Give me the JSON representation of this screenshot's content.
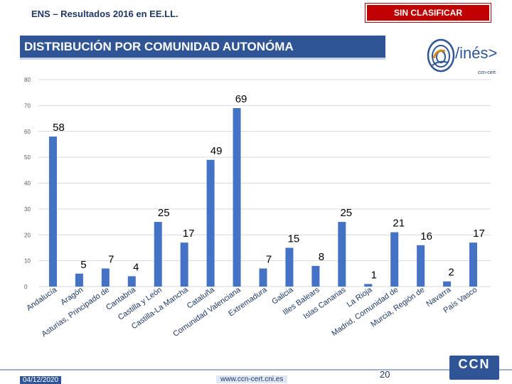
{
  "header": {
    "title": "ENS – Resultados 2016 en EE.LL.",
    "classification": "SIN CLASIFICAR"
  },
  "slide_title": "DISTRIBUCIÓN POR COMUNIDAD AUTONÓMA",
  "logo": {
    "text": "/inés>",
    "subtext": "ccn-cert"
  },
  "footer": {
    "date": "04/12/2020",
    "url": "www.ccn-cert.cni.es",
    "page": "20",
    "brand": "CCN"
  },
  "colors": {
    "bar": "#4472c4",
    "title_bg": "#2f5597",
    "classification_bg": "#c00000",
    "grid": "#d9d9d9"
  },
  "chart_data": {
    "type": "bar",
    "categories": [
      "Andalucía",
      "Aragón",
      "Asturias, Principado de",
      "Cantabria",
      "Castilla y León",
      "Castilla-La Mancha",
      "Cataluña",
      "Comunidad Valenciana",
      "Extremadura",
      "Galicia",
      "Illes Balears",
      "Islas Canarias",
      "La Rioja",
      "Madrid, Comunidad de",
      "Murcia, Región de",
      "Navarra",
      "País Vasco"
    ],
    "values": [
      58,
      5,
      7,
      4,
      25,
      17,
      49,
      69,
      7,
      15,
      8,
      25,
      1,
      21,
      16,
      2,
      17
    ],
    "ylim": [
      0,
      80
    ],
    "yticks": [
      0,
      10,
      20,
      30,
      40,
      50,
      60,
      70,
      80
    ],
    "grid": true,
    "legend": "none"
  }
}
